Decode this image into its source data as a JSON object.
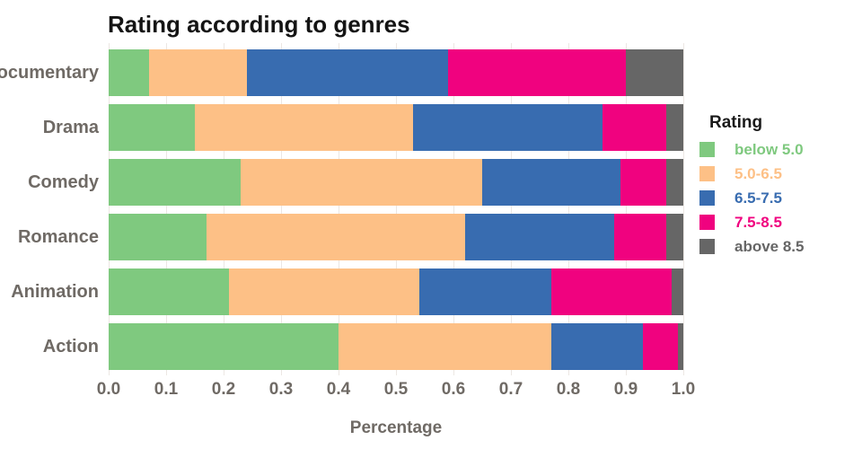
{
  "title": "Rating according to genres",
  "chart_data": {
    "type": "bar",
    "stacked": true,
    "orientation": "horizontal",
    "title": "Rating according to genres",
    "xlabel": "Percentage",
    "ylabel": "",
    "xlim": [
      0.0,
      1.0
    ],
    "x_ticks": [
      "0.0",
      "0.1",
      "0.2",
      "0.3",
      "0.4",
      "0.5",
      "0.6",
      "0.7",
      "0.8",
      "0.9",
      "1.0"
    ],
    "grid": "vertical",
    "legend": {
      "title": "Rating",
      "position": "right"
    },
    "categories": [
      "Documentary",
      "Drama",
      "Comedy",
      "Romance",
      "Animation",
      "Action"
    ],
    "series": [
      {
        "name": "below 5.0",
        "color": "#7fc97f",
        "values": [
          0.07,
          0.15,
          0.23,
          0.17,
          0.21,
          0.4
        ]
      },
      {
        "name": "5.0-6.5",
        "color": "#fdc086",
        "values": [
          0.17,
          0.38,
          0.42,
          0.45,
          0.33,
          0.37
        ]
      },
      {
        "name": "6.5-7.5",
        "color": "#386cb0",
        "values": [
          0.35,
          0.33,
          0.24,
          0.26,
          0.23,
          0.16
        ]
      },
      {
        "name": "7.5-8.5",
        "color": "#f0027f",
        "values": [
          0.31,
          0.11,
          0.08,
          0.09,
          0.21,
          0.06
        ]
      },
      {
        "name": "above 8.5",
        "color": "#666666",
        "values": [
          0.1,
          0.03,
          0.03,
          0.03,
          0.02,
          0.01
        ]
      }
    ]
  },
  "colors": {
    "grid": "#ece7e3",
    "axis_text": "#6f6a65",
    "title_text": "#141414",
    "background": "#ffffff"
  }
}
